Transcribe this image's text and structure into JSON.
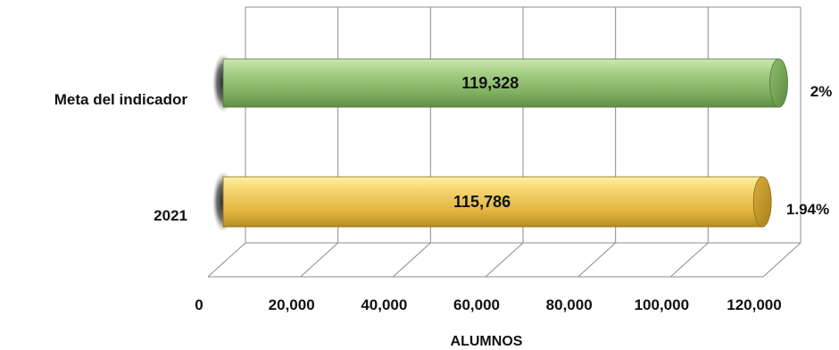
{
  "chart_data": {
    "type": "bar",
    "orientation": "horizontal",
    "xlabel": "ALUMNOS",
    "xlim": [
      0,
      120000
    ],
    "xticks": [
      0,
      20000,
      40000,
      60000,
      80000,
      100000,
      120000
    ],
    "xtick_labels": [
      "0",
      "20,000",
      "40,000",
      "60,000",
      "80,000",
      "100,000",
      "120,000"
    ],
    "grid": true,
    "bars": [
      {
        "category": "Meta del indicador",
        "value": 119328,
        "value_label": "119,328",
        "percent_label": "2%",
        "color": "#8fbc6f"
      },
      {
        "category": "2021",
        "value": 115786,
        "value_label": "115,786",
        "percent_label": "1.94%",
        "color": "#e8c14a"
      }
    ]
  }
}
